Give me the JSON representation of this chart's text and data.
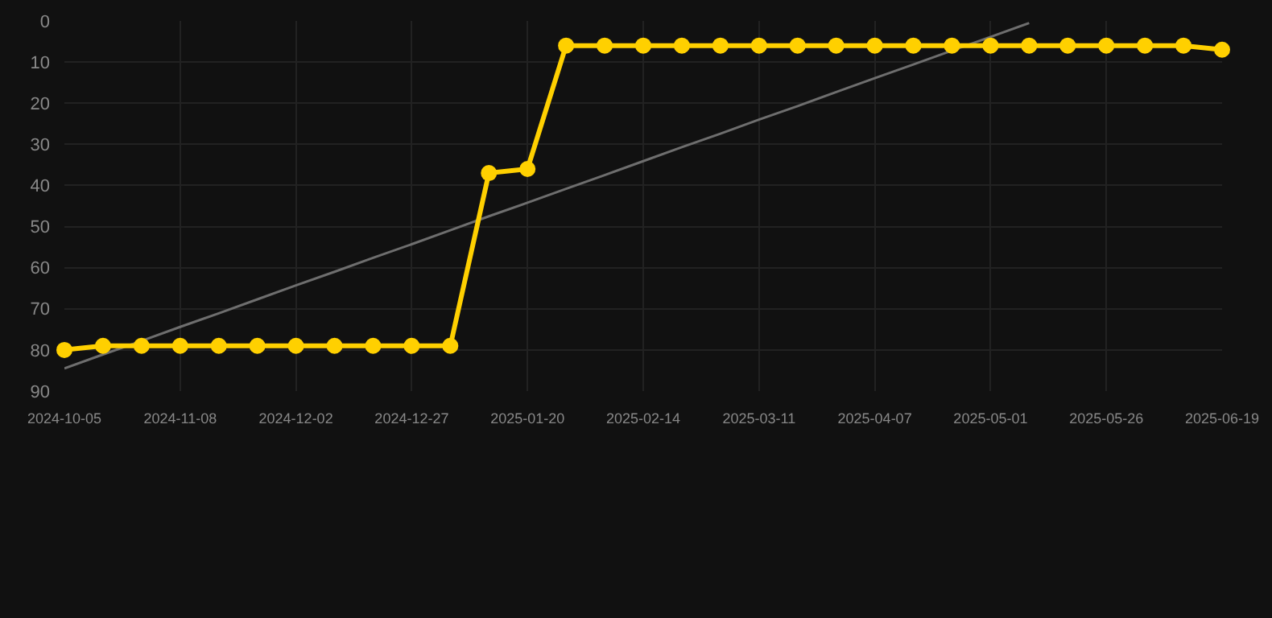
{
  "chart_data": {
    "type": "line",
    "categories": [
      "2024-10-05",
      null,
      null,
      "2024-11-08",
      null,
      null,
      "2024-12-02",
      null,
      null,
      "2024-12-27",
      null,
      null,
      "2025-01-20",
      null,
      null,
      "2025-02-14",
      null,
      null,
      "2025-03-11",
      null,
      null,
      "2025-04-07",
      null,
      null,
      "2025-05-01",
      null,
      null,
      "2025-05-26",
      null,
      null,
      "2025-06-19"
    ],
    "series": [
      {
        "color": "#ffd000",
        "marker": "circle",
        "values": [
          80,
          79,
          79,
          79,
          79,
          79,
          79,
          79,
          79,
          79,
          79,
          37,
          36,
          6,
          6,
          6,
          6,
          6,
          6,
          6,
          6,
          6,
          6,
          6,
          6,
          6,
          6,
          6,
          6,
          6,
          7
        ]
      },
      {
        "color": "#6e6e6e",
        "marker": "none",
        "values": [
          84.5,
          81.1,
          77.8,
          74.4,
          71.1,
          67.7,
          64.3,
          61.0,
          57.6,
          54.3,
          50.9,
          47.5,
          44.2,
          40.8,
          37.5,
          34.1,
          30.7,
          27.4,
          24.0,
          20.7,
          17.3,
          13.9,
          10.6,
          7.2,
          3.9,
          0.5,
          null,
          null,
          null,
          null,
          null
        ]
      }
    ],
    "ylim": [
      90,
      0
    ],
    "yticks": [
      0,
      10,
      20,
      30,
      40,
      50,
      60,
      70,
      80,
      90
    ],
    "grid": true
  }
}
